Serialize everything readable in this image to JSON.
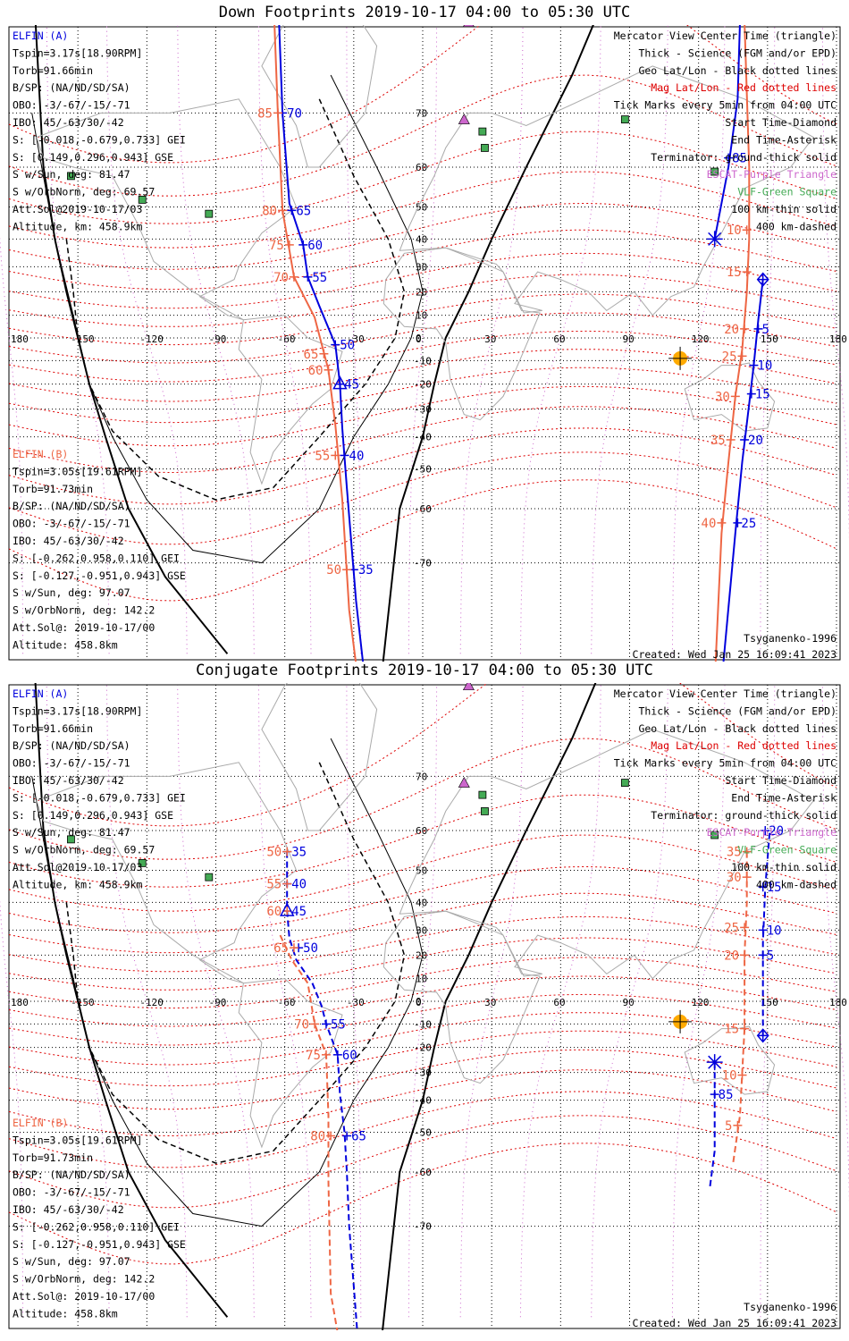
{
  "panels": [
    {
      "title": "Down Footprints 2019-10-17 04:00 to 05:30 UTC",
      "elfin_a": [
        "ELFIN (A)",
        "Tspin=3.17s[18.90RPM]",
        "Torb=91.66min",
        "B/SP: (NA/ND/SD/SA)",
        "OBO: -3/-67/-15/-71",
        "IBO: 45/-63/30/-42",
        "S: [-0.018,-0.679,0.733] GEI",
        "S: [0.149,0.296,0.943] GSE",
        "S w/Sun, deg: 81.47",
        "S w/OrbNorm, deg: 69.57",
        "Att.Sol@2019-10-17/03",
        "Altitude, km: 458.9km"
      ],
      "elfin_b": [
        "ELFIN (B)",
        "Tspin=3.05s[19.61RPM]",
        "Torb=91.73min",
        "B/SP: (NA/ND/SD/SA)",
        "OBO: -3/-67/-15/-71",
        "IBO: 45/-63/30/-42",
        "S: [-0.262,0.958,0.110] GEI",
        "S: [-0.127,-0.951,0.943] GSE",
        "S w/Sun, deg: 97.07",
        "S w/OrbNorm, deg: 142.2",
        "Att.Sol@: 2019-10-17/00",
        "Altitude: 458.8km"
      ],
      "legend": [
        "Mercator View Center Time (triangle)",
        "Thick - Science (FGM and/or EPD)",
        "Geo Lat/Lon - Black dotted lines",
        "Mag Lat/Lon - Red dotted lines",
        "Tick Marks every 5min from 04:00 UTC",
        "Start Time-Diamond",
        "End Time-Asterisk",
        "Terminator: ground-thick solid",
        "ESCAT-Purple Triangle",
        "VLF-Green Square",
        "100 km-thin solid",
        "400 km-dashed"
      ],
      "model": "Tsyganenko-1996",
      "created": "Created: Wed Jan 25 16:09:41 2023"
    },
    {
      "title": "Conjugate Footprints 2019-10-17 04:00 to 05:30 UTC",
      "elfin_a": [
        "ELFIN (A)",
        "Tspin=3.17s[18.90RPM]",
        "Torb=91.66min",
        "B/SP: (NA/ND/SD/SA)",
        "OBO: -3/-67/-15/-71",
        "IBO: 45/-63/30/-42",
        "S: [-0.018,-0.679,0.733] GEI",
        "S: [0.149,0.296,0.943] GSE",
        "S w/Sun, deg: 81.47",
        "S w/OrbNorm, deg: 69.57",
        "Att.Sol@2019-10-17/03",
        "Altitude, km: 458.9km"
      ],
      "elfin_b": [
        "ELFIN (B)",
        "Tspin=3.05s[19.61RPM]",
        "Torb=91.73min",
        "B/SP: (NA/ND/SD/SA)",
        "OBO: -3/-67/-15/-71",
        "IBO: 45/-63/30/-42",
        "S: [-0.262,0.958,0.110] GEI",
        "S: [-0.127,-0.951,0.943] GSE",
        "S w/Sun, deg: 97.07",
        "S w/OrbNorm, deg: 142.2",
        "Att.Sol@: 2019-10-17/00",
        "Altitude: 458.8km"
      ],
      "legend": [
        "Mercator View Center Time (triangle)",
        "Thick - Science (FGM and/or EPD)",
        "Geo Lat/Lon - Black dotted lines",
        "Mag Lat/Lon - Red dotted lines",
        "Tick Marks every 5min from 04:00 UTC",
        "Start Time-Diamond",
        "End Time-Asterisk",
        "Terminator: ground-thick solid",
        "ESCAT-Purple Triangle",
        "VLF-Green Square",
        "100 km-thin solid",
        "400 km-dashed"
      ],
      "model": "Tsyganenko-1996",
      "created": "Created: Wed Jan 25 16:09:41 2023"
    }
  ],
  "colors": {
    "elfin_a": "#0000dd",
    "elfin_b": "#ee6644",
    "mag_grid": "#dd0000",
    "geo_grid": "#000000",
    "escat": "#cc66cc",
    "vlf": "#44aa55",
    "sun": "#ffaa00",
    "legend_mag": "#dd0000",
    "legend_escat": "#cc66cc",
    "legend_vlf": "#44aa55"
  },
  "chart_data": [
    {
      "type": "map",
      "projection": "mercator",
      "lon_ticks": [
        -180,
        -150,
        -120,
        -90,
        -60,
        -30,
        0,
        30,
        60,
        90,
        120,
        150,
        180
      ],
      "lat_ticks": [
        70,
        60,
        50,
        40,
        30,
        20,
        10,
        0,
        -10,
        -20,
        -30,
        -40,
        -50,
        -60,
        -70
      ],
      "lon_tick_labels": [
        "180",
        "-150",
        "-120",
        "-90",
        "-60",
        "-30",
        "0",
        "30",
        "60",
        "90",
        "120",
        "150",
        "180"
      ],
      "lat_tick_labels": [
        "70",
        "60",
        "50",
        "40",
        "30",
        "20",
        "10",
        "0",
        "-10",
        "-20",
        "-30",
        "-40",
        "-50",
        "-60",
        "-70"
      ],
      "escat_sites": [
        {
          "lon": 20,
          "lat": 80
        },
        {
          "lon": 18,
          "lat": 69
        }
      ],
      "vlf_sites": [
        {
          "lon": 26,
          "lat": 67
        },
        {
          "lon": 27,
          "lat": 64
        },
        {
          "lon": 88,
          "lat": 69
        },
        {
          "lon": -153,
          "lat": 58
        },
        {
          "lon": -122,
          "lat": 52
        },
        {
          "lon": -93,
          "lat": 48
        },
        {
          "lon": 127,
          "lat": 59
        }
      ],
      "sun_subsolar": {
        "lon": 112,
        "lat": -9
      },
      "elfin_a_track": {
        "west": [
          {
            "lon": -64,
            "lat": 85
          },
          {
            "lon": -61,
            "lat": 70
          },
          {
            "lon": -58,
            "lat": 51
          },
          {
            "lon": -52,
            "lat": 38
          },
          {
            "lon": -50,
            "lat": 26
          },
          {
            "lon": -45,
            "lat": 14
          },
          {
            "lon": -38,
            "lat": -3
          },
          {
            "lon": -36,
            "lat": -20
          },
          {
            "lon": -35,
            "lat": -37
          },
          {
            "lon": -33,
            "lat": -55
          },
          {
            "lon": -29,
            "lat": -75
          },
          {
            "lon": -25,
            "lat": -82
          }
        ],
        "west_ticks": [
          {
            "lon": -61,
            "lat": 70,
            "label": "70"
          },
          {
            "lon": -57,
            "lat": 49,
            "label": "65"
          },
          {
            "lon": -52,
            "lat": 38,
            "label": "60"
          },
          {
            "lon": -50,
            "lat": 26,
            "label": "55"
          },
          {
            "lon": -38,
            "lat": -3,
            "label": "50"
          },
          {
            "lon": -36,
            "lat": -20,
            "label": "45"
          },
          {
            "lon": -34,
            "lat": -46,
            "label": "40"
          },
          {
            "lon": -30,
            "lat": -71,
            "label": "35"
          }
        ],
        "east": [
          {
            "lon": 127,
            "lat": 40
          },
          {
            "lon": 133,
            "lat": 60
          },
          {
            "lon": 137,
            "lat": 72
          },
          {
            "lon": 138,
            "lat": 80
          }
        ],
        "east_start": {
          "lon": 148,
          "lat": 25
        },
        "east_south": [
          {
            "lon": 148,
            "lat": 25
          },
          {
            "lon": 146,
            "lat": 8
          },
          {
            "lon": 144,
            "lat": -12
          },
          {
            "lon": 142,
            "lat": -28
          },
          {
            "lon": 139,
            "lat": -48
          },
          {
            "lon": 136,
            "lat": -65
          },
          {
            "lon": 130,
            "lat": -82
          }
        ],
        "east_ticks": [
          {
            "lon": 133,
            "lat": 62,
            "label": "85"
          },
          {
            "lon": 146,
            "lat": 4,
            "label": "5"
          },
          {
            "lon": 144,
            "lat": -12,
            "label": "10"
          },
          {
            "lon": 143,
            "lat": -24,
            "label": "15"
          },
          {
            "lon": 140,
            "lat": -41,
            "label": "20"
          },
          {
            "lon": 137,
            "lat": -63,
            "label": "25"
          }
        ],
        "center_triangle": {
          "lon": -36,
          "lat": -20
        },
        "end_asterisk": {
          "lon": 127,
          "lat": 40
        }
      },
      "elfin_b_track": {
        "west": [
          {
            "lon": -66,
            "lat": 85
          },
          {
            "lon": -63,
            "lat": 70
          },
          {
            "lon": -61,
            "lat": 49
          },
          {
            "lon": -56,
            "lat": 26
          },
          {
            "lon": -47,
            "lat": 9
          },
          {
            "lon": -41,
            "lat": -14
          },
          {
            "lon": -38,
            "lat": -36
          },
          {
            "lon": -35,
            "lat": -58
          },
          {
            "lon": -32,
            "lat": -76
          },
          {
            "lon": -28,
            "lat": -82
          }
        ],
        "west_labels": [
          {
            "lon": -63,
            "lat": 70,
            "label": "85"
          },
          {
            "lon": -61,
            "lat": 49,
            "label": "80"
          },
          {
            "lon": -58,
            "lat": 38,
            "label": "75"
          },
          {
            "lon": -56,
            "lat": 26,
            "label": "70"
          },
          {
            "lon": -43,
            "lat": -7,
            "label": "65"
          },
          {
            "lon": -41,
            "lat": -14,
            "label": "60"
          },
          {
            "lon": -38,
            "lat": -46,
            "label": "55"
          },
          {
            "lon": -33,
            "lat": -71,
            "label": "50"
          }
        ],
        "east": [
          {
            "lon": 140,
            "lat": 80
          },
          {
            "lon": 142,
            "lat": 60
          },
          {
            "lon": 142,
            "lat": 40
          },
          {
            "lon": 141,
            "lat": 20
          },
          {
            "lon": 139,
            "lat": -5
          },
          {
            "lon": 136,
            "lat": -25
          },
          {
            "lon": 133,
            "lat": -48
          },
          {
            "lon": 130,
            "lat": -65
          },
          {
            "lon": 127,
            "lat": -82
          }
        ],
        "east_labels": [
          {
            "lon": 141,
            "lat": 43,
            "label": "10"
          },
          {
            "lon": 141,
            "lat": 28,
            "label": "15"
          },
          {
            "lon": 140,
            "lat": 4,
            "label": "20"
          },
          {
            "lon": 139,
            "lat": -8,
            "label": "25"
          },
          {
            "lon": 136,
            "lat": -25,
            "label": "30"
          },
          {
            "lon": 134,
            "lat": -41,
            "label": "35"
          },
          {
            "lon": 130,
            "lat": -63,
            "label": "40"
          }
        ]
      }
    },
    {
      "type": "map",
      "projection": "mercator",
      "lon_ticks": [
        -180,
        -150,
        -120,
        -90,
        -60,
        -30,
        0,
        30,
        60,
        90,
        120,
        150,
        180
      ],
      "lat_ticks": [
        70,
        60,
        50,
        40,
        30,
        20,
        10,
        0,
        -10,
        -20,
        -30,
        -40,
        -50,
        -60,
        -70
      ],
      "lon_tick_labels": [
        "180",
        "-150",
        "-120",
        "-90",
        "-60",
        "-30",
        "0",
        "30",
        "60",
        "90",
        "120",
        "150",
        "180"
      ],
      "lat_tick_labels": [
        "70",
        "60",
        "50",
        "40",
        "30",
        "20",
        "10",
        "0",
        "-10",
        "-20",
        "-30",
        "-40",
        "-50",
        "-60",
        "-70"
      ],
      "escat_sites": [
        {
          "lon": 20,
          "lat": 80
        },
        {
          "lon": 18,
          "lat": 69
        }
      ],
      "vlf_sites": [
        {
          "lon": 26,
          "lat": 67
        },
        {
          "lon": 27,
          "lat": 64
        },
        {
          "lon": 88,
          "lat": 69
        },
        {
          "lon": -153,
          "lat": 58
        },
        {
          "lon": -122,
          "lat": 52
        },
        {
          "lon": -93,
          "lat": 48
        },
        {
          "lon": 127,
          "lat": 59
        }
      ],
      "sun_subsolar": {
        "lon": 112,
        "lat": -9
      },
      "elfin_a_track": {
        "west": [
          {
            "lon": -59,
            "lat": 55
          },
          {
            "lon": -59,
            "lat": 45
          },
          {
            "lon": -59,
            "lat": 37
          },
          {
            "lon": -58,
            "lat": 27
          },
          {
            "lon": -55,
            "lat": 18
          },
          {
            "lon": -48,
            "lat": 8
          },
          {
            "lon": -44,
            "lat": -2
          },
          {
            "lon": -42,
            "lat": -10
          },
          {
            "lon": -37,
            "lat": -23
          },
          {
            "lon": -36,
            "lat": -38
          },
          {
            "lon": -34,
            "lat": -50
          },
          {
            "lon": -33,
            "lat": -60
          },
          {
            "lon": -32,
            "lat": -70
          },
          {
            "lon": -28,
            "lat": -82
          }
        ],
        "west_ticks": [
          {
            "lon": -59,
            "lat": 55,
            "label": "35"
          },
          {
            "lon": -59,
            "lat": 46,
            "label": "40"
          },
          {
            "lon": -59,
            "lat": 37,
            "label": "45"
          },
          {
            "lon": -54,
            "lat": 23,
            "label": "50"
          },
          {
            "lon": -42,
            "lat": -10,
            "label": "55"
          },
          {
            "lon": -37,
            "lat": -23,
            "label": "60"
          },
          {
            "lon": -33,
            "lat": -51,
            "label": "65"
          }
        ],
        "east": [
          {
            "lon": 148,
            "lat": -15
          },
          {
            "lon": 148,
            "lat": 0
          },
          {
            "lon": 148,
            "lat": 25
          },
          {
            "lon": 149,
            "lat": 45
          },
          {
            "lon": 151,
            "lat": 60
          }
        ],
        "east_ticks": [
          {
            "lon": 148,
            "lat": 20,
            "label": "5"
          },
          {
            "lon": 148,
            "lat": 30,
            "label": "10"
          },
          {
            "lon": 148,
            "lat": 45,
            "label": "15"
          },
          {
            "lon": 149,
            "lat": 60,
            "label": "20"
          }
        ],
        "east_south": [
          {
            "lon": 127,
            "lat": -26
          },
          {
            "lon": 127,
            "lat": -40
          },
          {
            "lon": 127,
            "lat": -55
          },
          {
            "lon": 125,
            "lat": -63
          }
        ],
        "east_south_ticks": [
          {
            "lon": 127,
            "lat": -38,
            "label": "85"
          }
        ],
        "center_triangle": {
          "lon": -59,
          "lat": 37
        },
        "start_diamond": {
          "lon": 148,
          "lat": -15
        },
        "end_asterisk": {
          "lon": 127,
          "lat": -26
        }
      },
      "elfin_b_track": {
        "west": [
          {
            "lon": -62,
            "lat": 28
          },
          {
            "lon": -57,
            "lat": 18
          },
          {
            "lon": -50,
            "lat": 8
          },
          {
            "lon": -47,
            "lat": -10
          },
          {
            "lon": -42,
            "lat": -23
          },
          {
            "lon": -41,
            "lat": -45
          },
          {
            "lon": -41,
            "lat": -62
          },
          {
            "lon": -40,
            "lat": -78
          },
          {
            "lon": -36,
            "lat": -82
          }
        ],
        "west_labels": [
          {
            "lon": -59,
            "lat": 55,
            "label": "50"
          },
          {
            "lon": -59,
            "lat": 46,
            "label": "55"
          },
          {
            "lon": -59,
            "lat": 37,
            "label": "60"
          },
          {
            "lon": -56,
            "lat": 23,
            "label": "65"
          },
          {
            "lon": -47,
            "lat": -10,
            "label": "70"
          },
          {
            "lon": -42,
            "lat": -23,
            "label": "75"
          },
          {
            "lon": -40,
            "lat": -51,
            "label": "80"
          }
        ],
        "east": [
          {
            "lon": 141,
            "lat": 55
          },
          {
            "lon": 141,
            "lat": 40
          },
          {
            "lon": 140,
            "lat": 20
          },
          {
            "lon": 140,
            "lat": -12
          },
          {
            "lon": 139,
            "lat": -30
          },
          {
            "lon": 138,
            "lat": -45
          },
          {
            "lon": 135,
            "lat": -58
          }
        ],
        "east_labels": [
          {
            "lon": 141,
            "lat": 55,
            "label": "35"
          },
          {
            "lon": 141,
            "lat": 48,
            "label": "30"
          },
          {
            "lon": 140,
            "lat": 31,
            "label": "25"
          },
          {
            "lon": 140,
            "lat": 20,
            "label": "20"
          },
          {
            "lon": 140,
            "lat": -12,
            "label": "15"
          },
          {
            "lon": 139,
            "lat": -31,
            "label": "10"
          },
          {
            "lon": 137,
            "lat": -48,
            "label": "5"
          }
        ]
      }
    }
  ]
}
